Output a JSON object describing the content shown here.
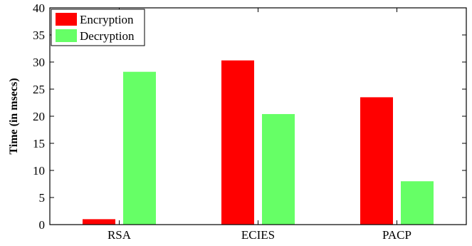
{
  "chart_data": {
    "type": "bar",
    "title": "",
    "xlabel": "",
    "ylabel": "Time (in msecs)",
    "ylim": [
      0,
      40
    ],
    "yticks": [
      0,
      5,
      10,
      15,
      20,
      25,
      30,
      35,
      40
    ],
    "grid": false,
    "legend_position": "top-left",
    "categories": [
      "RSA",
      "ECIES",
      "PACP"
    ],
    "series": [
      {
        "name": "Encryption",
        "color": "#ff0000",
        "values": [
          1.0,
          30.3,
          23.5
        ]
      },
      {
        "name": "Decryption",
        "color": "#66ff66",
        "values": [
          28.2,
          20.4,
          8.0
        ]
      }
    ]
  }
}
